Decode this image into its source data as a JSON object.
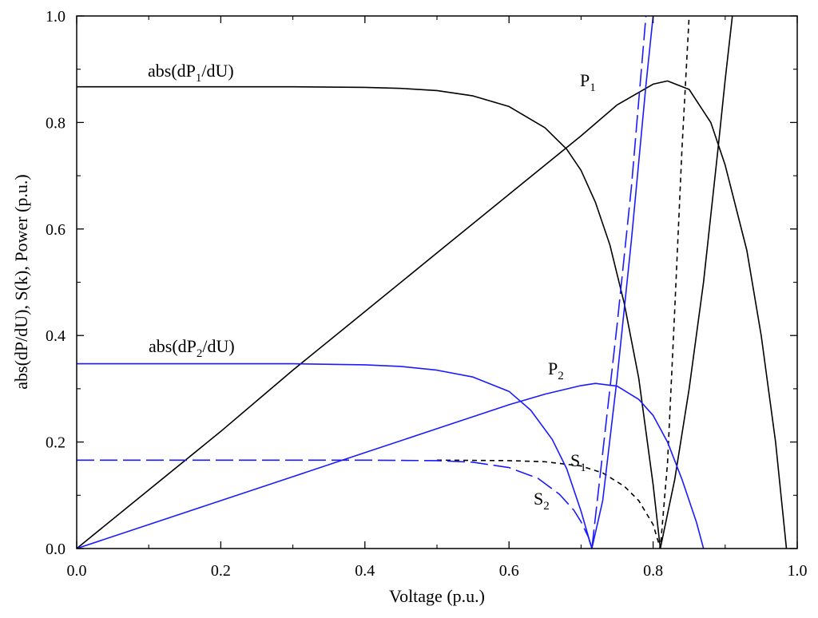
{
  "chart_data": {
    "type": "line",
    "xlabel": "Voltage (p.u.)",
    "ylabel": "abs(dP/dU),  S(k), Power (p.u.)",
    "xlim": [
      0,
      1.0
    ],
    "ylim": [
      0,
      1.0
    ],
    "x_ticks": [
      "0.0",
      "0.2",
      "0.4",
      "0.6",
      "0.8",
      "1.0"
    ],
    "y_ticks": [
      "0.0",
      "0.2",
      "0.4",
      "0.6",
      "0.8",
      "1.0"
    ],
    "grid": false,
    "colors": {
      "curve1": "#000000",
      "curve2": "#1a1aff"
    },
    "annotations": [
      {
        "id": "dp1",
        "parts": [
          [
            "abs(dP",
            ""
          ],
          [
            "1",
            "sub"
          ],
          [
            "/dU)",
            ""
          ]
        ]
      },
      {
        "id": "p1",
        "parts": [
          [
            "P",
            ""
          ],
          [
            "1",
            "sub"
          ]
        ]
      },
      {
        "id": "dp2",
        "parts": [
          [
            "abs(dP",
            ""
          ],
          [
            "2",
            "sub"
          ],
          [
            "/dU)",
            ""
          ]
        ]
      },
      {
        "id": "p2",
        "parts": [
          [
            "P",
            ""
          ],
          [
            "2",
            "sub"
          ]
        ]
      },
      {
        "id": "s1",
        "parts": [
          [
            "S",
            ""
          ],
          [
            "1",
            "sub"
          ]
        ]
      },
      {
        "id": "s2",
        "parts": [
          [
            "S",
            ""
          ],
          [
            "2",
            "sub"
          ]
        ]
      }
    ],
    "series": [
      {
        "id": "P1",
        "color": "#000000",
        "dash": "solid",
        "x": [
          0,
          0.1,
          0.2,
          0.3,
          0.4,
          0.5,
          0.6,
          0.7,
          0.75,
          0.8,
          0.82,
          0.85,
          0.88,
          0.9,
          0.93,
          0.95,
          0.97,
          0.985
        ],
        "y": [
          0,
          0.11,
          0.22,
          0.335,
          0.445,
          0.555,
          0.665,
          0.775,
          0.833,
          0.872,
          0.878,
          0.862,
          0.8,
          0.72,
          0.56,
          0.4,
          0.2,
          0.0
        ]
      },
      {
        "id": "dP1",
        "color": "#000000",
        "dash": "solid",
        "x": [
          0,
          0.1,
          0.2,
          0.3,
          0.4,
          0.45,
          0.5,
          0.55,
          0.6,
          0.65,
          0.68,
          0.7,
          0.72,
          0.74,
          0.76,
          0.78,
          0.8,
          0.81,
          0.83,
          0.85,
          0.87,
          0.89,
          0.9,
          0.91
        ],
        "y": [
          0.867,
          0.867,
          0.867,
          0.867,
          0.866,
          0.864,
          0.86,
          0.85,
          0.83,
          0.79,
          0.75,
          0.71,
          0.65,
          0.57,
          0.46,
          0.32,
          0.12,
          0.0,
          0.13,
          0.3,
          0.5,
          0.75,
          0.88,
          1.0
        ]
      },
      {
        "id": "S1",
        "color": "#000000",
        "dash": "dashed",
        "x": [
          0.5,
          0.6,
          0.65,
          0.7,
          0.73,
          0.76,
          0.78,
          0.8,
          0.81,
          0.82,
          0.83,
          0.84,
          0.85
        ],
        "y": [
          0.166,
          0.165,
          0.163,
          0.155,
          0.142,
          0.117,
          0.09,
          0.045,
          0.0,
          0.16,
          0.45,
          0.75,
          1.0
        ]
      },
      {
        "id": "P2",
        "color": "#1a1aff",
        "dash": "solid",
        "x": [
          0,
          0.1,
          0.2,
          0.3,
          0.4,
          0.5,
          0.6,
          0.65,
          0.7,
          0.72,
          0.75,
          0.78,
          0.8,
          0.82,
          0.84,
          0.86,
          0.87
        ],
        "y": [
          0,
          0.045,
          0.09,
          0.135,
          0.18,
          0.225,
          0.27,
          0.29,
          0.306,
          0.31,
          0.305,
          0.28,
          0.25,
          0.2,
          0.13,
          0.05,
          0.0
        ]
      },
      {
        "id": "dP2",
        "color": "#1a1aff",
        "dash": "solid",
        "x": [
          0,
          0.1,
          0.2,
          0.3,
          0.4,
          0.45,
          0.5,
          0.55,
          0.6,
          0.63,
          0.66,
          0.68,
          0.7,
          0.715,
          0.73,
          0.75,
          0.77,
          0.79,
          0.8
        ],
        "y": [
          0.347,
          0.347,
          0.347,
          0.347,
          0.345,
          0.342,
          0.335,
          0.322,
          0.295,
          0.26,
          0.205,
          0.15,
          0.07,
          0.0,
          0.09,
          0.32,
          0.58,
          0.87,
          1.0
        ]
      },
      {
        "id": "S2",
        "color": "#1a1aff",
        "dash": "longdash",
        "x": [
          0,
          0.1,
          0.2,
          0.3,
          0.4,
          0.5,
          0.55,
          0.6,
          0.64,
          0.67,
          0.69,
          0.7,
          0.71,
          0.715,
          0.73,
          0.75,
          0.77,
          0.79
        ],
        "y": [
          0.166,
          0.166,
          0.166,
          0.166,
          0.166,
          0.165,
          0.162,
          0.152,
          0.132,
          0.102,
          0.072,
          0.05,
          0.022,
          0.0,
          0.18,
          0.42,
          0.68,
          1.0
        ]
      }
    ]
  }
}
